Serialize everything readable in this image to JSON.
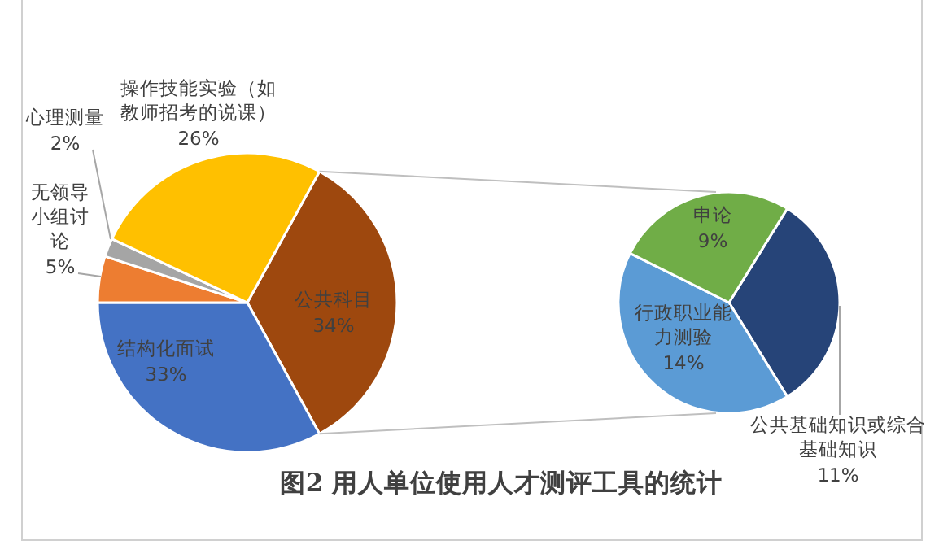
{
  "chart_data": [
    {
      "type": "pie",
      "title": "图2  用人单位使用人才测评工具的统计",
      "categories": [
        "公共科目",
        "结构化面试",
        "无领导小组讨论",
        "心理测量",
        "操作技能实验（如教师招考的说课）"
      ],
      "values": [
        34,
        33,
        5,
        2,
        26
      ],
      "colors": [
        "#9e480e",
        "#4472c4",
        "#ed7d31",
        "#a5a5a5",
        "#ffc000"
      ],
      "value_labels": [
        "34%",
        "33%",
        "5%",
        "2%",
        "26%"
      ]
    },
    {
      "type": "pie",
      "categories": [
        "公共基础知识或综合基础知识",
        "行政职业能力测验",
        "申论"
      ],
      "values": [
        11,
        14,
        9
      ],
      "colors": [
        "#264478",
        "#5b9bd5",
        "#70ad47"
      ],
      "value_labels": [
        "11%",
        "14%",
        "9%"
      ]
    }
  ]
}
